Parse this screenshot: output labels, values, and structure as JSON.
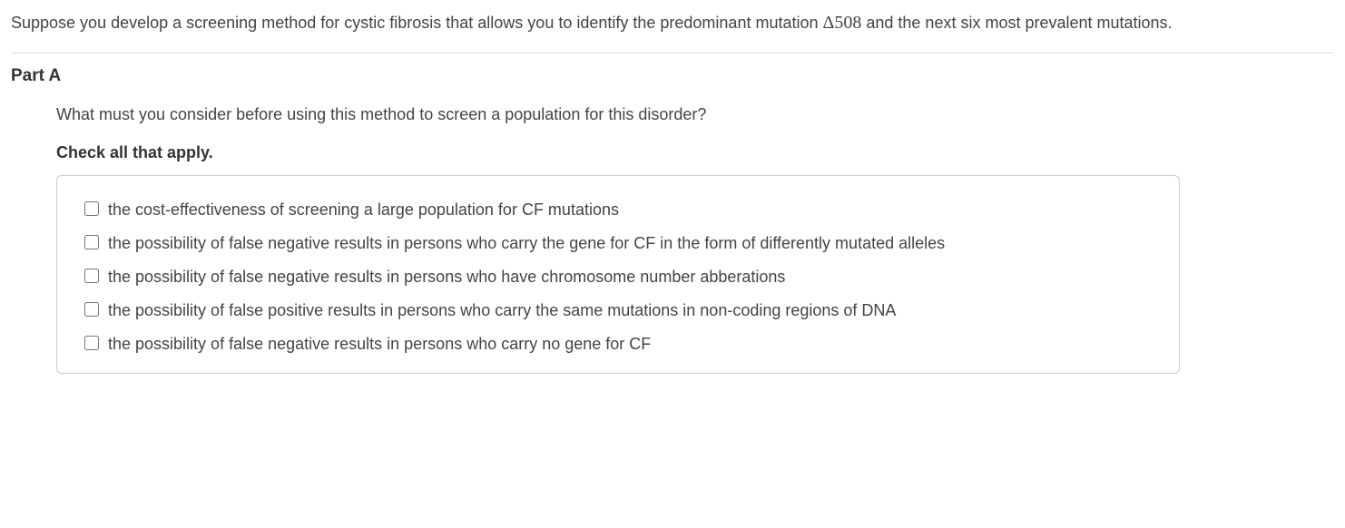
{
  "intro": {
    "text_before": "Suppose you develop a screening method for cystic fibrosis that allows you to identify the predominant mutation ",
    "mutation": "Δ508",
    "text_after": " and the next six most prevalent mutations."
  },
  "part": {
    "title": "Part A",
    "question": "What must you consider before using this method to screen a population for this disorder?",
    "instruction": "Check all that apply.",
    "options": [
      "the cost-effectiveness of screening a large population for CF mutations",
      "the possibility of false negative results in persons who carry the gene for CF in the form of differently mutated alleles",
      "the possibility of false negative results in persons who have chromosome number abberations",
      "the possibility of false positive results in persons who carry the same mutations in non-coding regions of DNA",
      "the possibility of false negative results in persons who carry no gene for CF"
    ]
  }
}
